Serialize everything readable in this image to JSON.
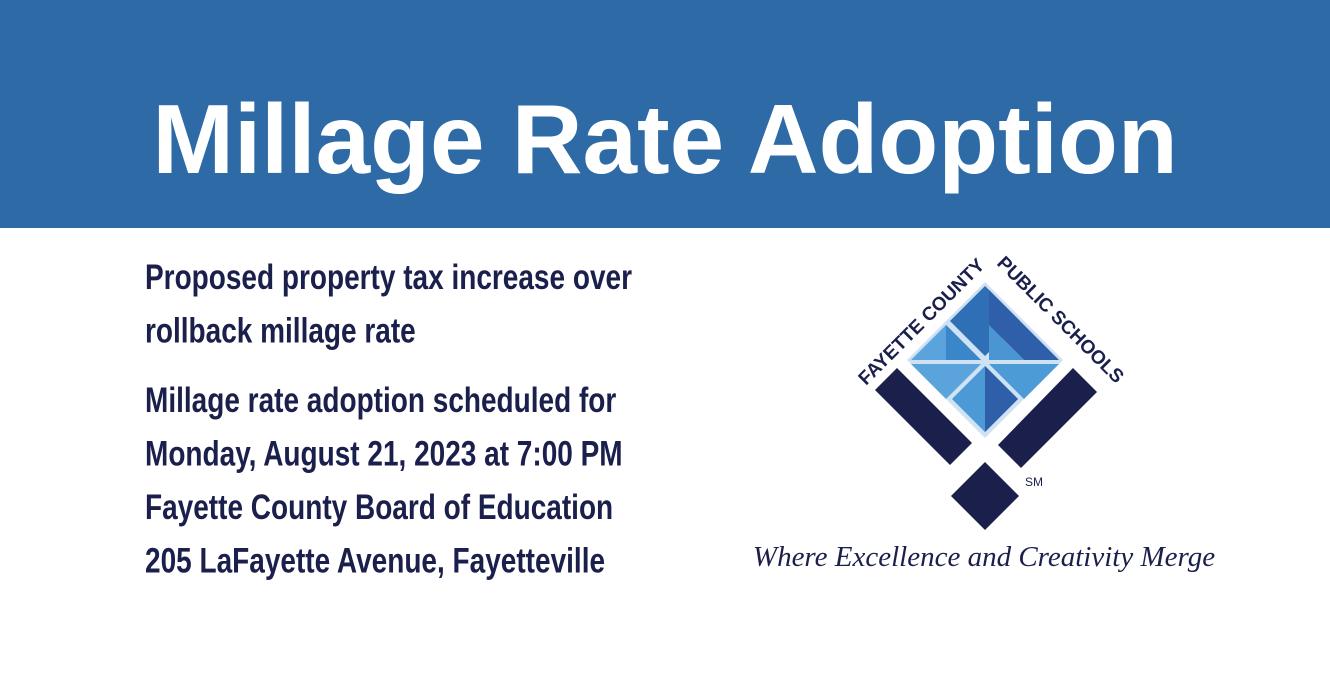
{
  "header": {
    "title": "Millage Rate Adoption"
  },
  "notice": {
    "paragraphs": [
      [
        "Proposed property tax increase over",
        "rollback millage rate"
      ],
      [
        "Millage rate adoption scheduled for",
        "Monday, August 21, 2023 at 7:00 PM",
        "Fayette County Board of Education",
        "205 LaFayette Avenue, Fayetteville"
      ]
    ]
  },
  "logo": {
    "left_text": "FAYETTE COUNTY",
    "right_text": "PUBLIC SCHOOLS",
    "mark": "SM",
    "tagline": "Where Excellence and Creativity Merge"
  }
}
